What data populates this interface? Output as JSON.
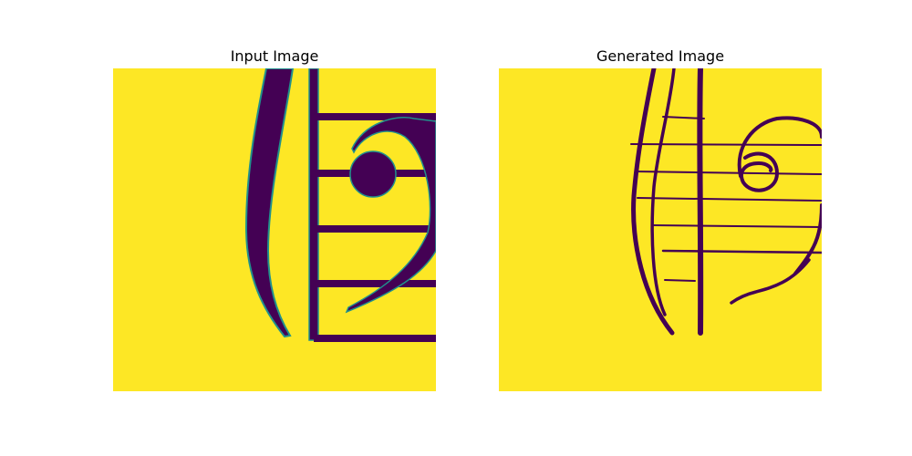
{
  "figure": {
    "left_panel": {
      "title": "Input Image"
    },
    "right_panel": {
      "title": "Generated Image"
    }
  },
  "colors": {
    "background": "#fde725",
    "ink": "#440154",
    "edge": "#21918c"
  },
  "icons": {
    "left": "bass-clef-notation-crop",
    "right": "hand-drawn-bass-clef-sketch"
  }
}
